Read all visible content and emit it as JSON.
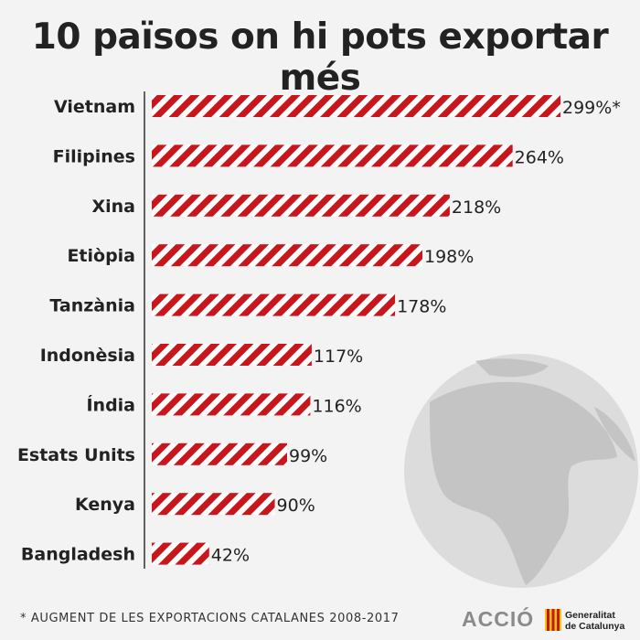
{
  "title": "10 països on hi pots exportar més",
  "footnote": "* AUGMENT DE LES EXPORTACIONS CATALANES 2008-2017",
  "logos": {
    "accio": "ACCIÓ",
    "generalitat_line1": "Generalitat",
    "generalitat_line2": "de Catalunya"
  },
  "colors": {
    "bar_stripe": "#c8161d",
    "bar_gap": "#ffffff",
    "text": "#222222",
    "globe": "#cfcfcf"
  },
  "chart_data": {
    "type": "bar",
    "orientation": "horizontal",
    "title": "10 països on hi pots exportar més",
    "categories": [
      "Vietnam",
      "Filipines",
      "Xina",
      "Etiòpia",
      "Tanzània",
      "Indonèsia",
      "Índia",
      "Estats Units",
      "Kenya",
      "Bangladesh"
    ],
    "values": [
      299,
      264,
      218,
      198,
      178,
      117,
      116,
      99,
      90,
      42
    ],
    "value_labels": [
      "299%*",
      "264%",
      "218%",
      "198%",
      "178%",
      "117%",
      "116%",
      "99%",
      "90%",
      "42%"
    ],
    "unit": "%",
    "xlim": [
      0,
      299
    ],
    "grid": false,
    "legend": "none"
  }
}
